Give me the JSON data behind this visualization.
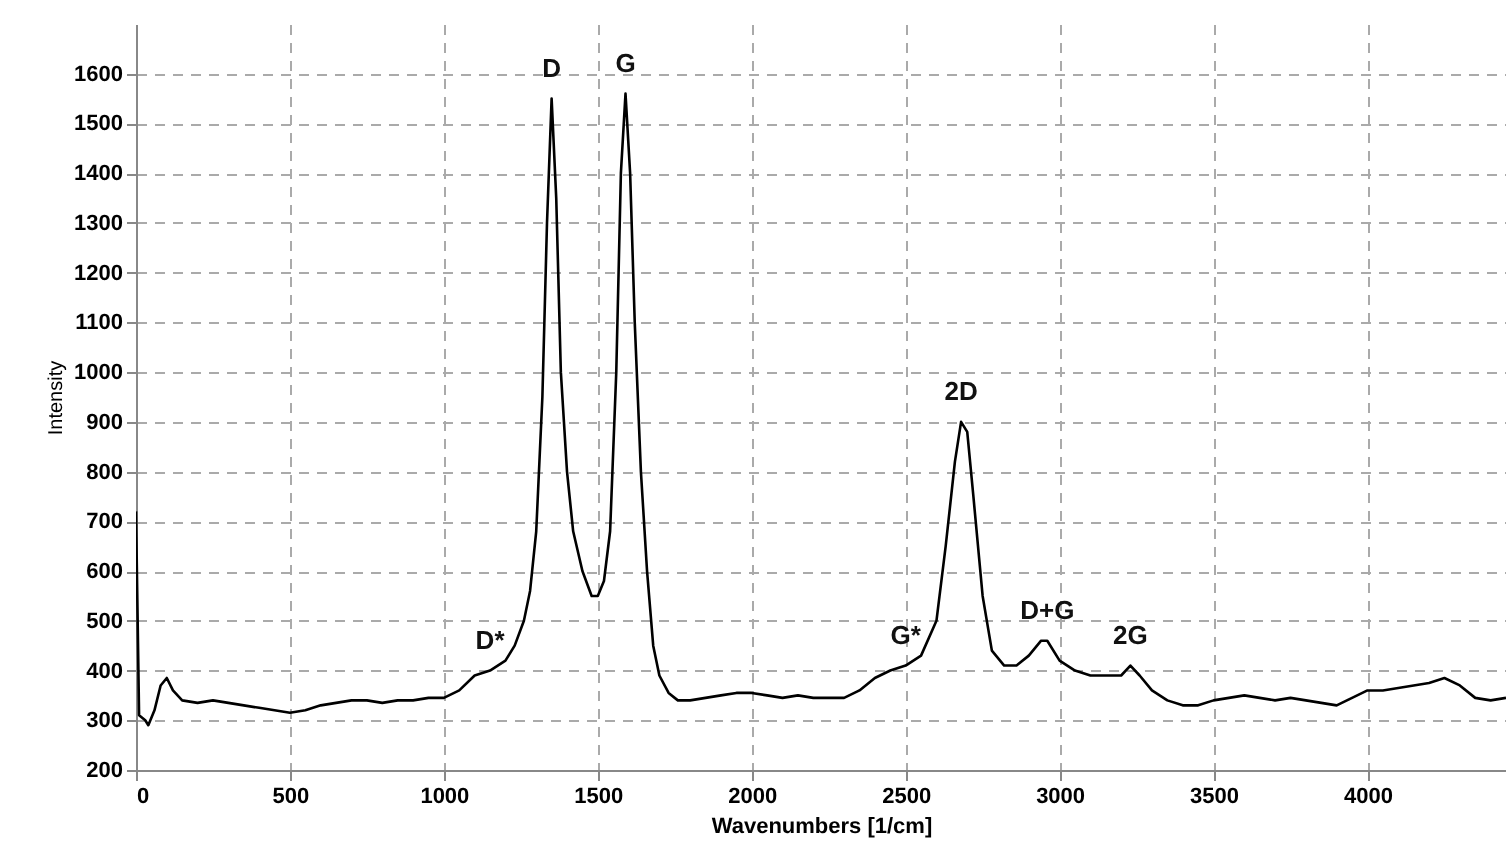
{
  "chart_data": {
    "type": "line",
    "xlabel": "Wavenumbers [1/cm]",
    "ylabel": "Intensity",
    "xlim": [
      0,
      4450
    ],
    "ylim": [
      200,
      1700
    ],
    "xticks": [
      0,
      500,
      1000,
      1500,
      2000,
      2500,
      3000,
      3500,
      4000
    ],
    "yticks": [
      200,
      300,
      400,
      500,
      600,
      700,
      800,
      900,
      1000,
      1100,
      1200,
      1300,
      1400,
      1500,
      1600
    ],
    "grid": true,
    "marker": "none",
    "line_style": "solid",
    "x": [
      0,
      10,
      30,
      40,
      60,
      80,
      100,
      120,
      150,
      200,
      250,
      300,
      350,
      400,
      450,
      500,
      550,
      600,
      650,
      700,
      750,
      800,
      850,
      900,
      950,
      1000,
      1050,
      1100,
      1150,
      1200,
      1230,
      1260,
      1280,
      1300,
      1320,
      1335,
      1350,
      1365,
      1380,
      1400,
      1420,
      1450,
      1480,
      1500,
      1520,
      1540,
      1560,
      1575,
      1590,
      1605,
      1620,
      1640,
      1660,
      1680,
      1700,
      1730,
      1760,
      1800,
      1850,
      1900,
      1950,
      2000,
      2050,
      2100,
      2150,
      2200,
      2250,
      2300,
      2350,
      2400,
      2450,
      2500,
      2550,
      2600,
      2630,
      2660,
      2680,
      2700,
      2720,
      2750,
      2780,
      2820,
      2860,
      2900,
      2940,
      2960,
      3000,
      3050,
      3100,
      3150,
      3200,
      3230,
      3260,
      3300,
      3350,
      3400,
      3450,
      3500,
      3550,
      3600,
      3650,
      3700,
      3750,
      3800,
      3850,
      3900,
      3950,
      4000,
      4050,
      4100,
      4150,
      4200,
      4250,
      4300,
      4350,
      4400,
      4450
    ],
    "series": [
      {
        "color": "#000000",
        "values": [
          720,
          310,
          300,
          290,
          320,
          370,
          385,
          360,
          340,
          335,
          340,
          335,
          330,
          325,
          320,
          315,
          320,
          330,
          335,
          340,
          340,
          335,
          340,
          340,
          345,
          345,
          360,
          390,
          400,
          420,
          450,
          500,
          560,
          680,
          950,
          1300,
          1550,
          1350,
          1000,
          800,
          680,
          600,
          550,
          550,
          580,
          680,
          1000,
          1400,
          1560,
          1400,
          1100,
          800,
          600,
          450,
          390,
          355,
          340,
          340,
          345,
          350,
          355,
          355,
          350,
          345,
          350,
          345,
          345,
          345,
          360,
          385,
          400,
          410,
          430,
          500,
          650,
          820,
          900,
          880,
          750,
          550,
          440,
          410,
          410,
          430,
          460,
          460,
          420,
          400,
          390,
          390,
          390,
          410,
          390,
          360,
          340,
          330,
          330,
          340,
          345,
          350,
          345,
          340,
          345,
          340,
          335,
          330,
          345,
          360,
          360,
          365,
          370,
          375,
          385,
          370,
          345,
          340,
          345
        ]
      }
    ],
    "annotations": [
      {
        "text": "D",
        "x": 1350,
        "y": 1550
      },
      {
        "text": "G",
        "x": 1590,
        "y": 1560
      },
      {
        "text": "D*",
        "x": 1150,
        "y": 400
      },
      {
        "text": "G*",
        "x": 2500,
        "y": 410
      },
      {
        "text": "2D",
        "x": 2680,
        "y": 900
      },
      {
        "text": "D+G",
        "x": 2960,
        "y": 460
      },
      {
        "text": "2G",
        "x": 3230,
        "y": 410
      }
    ]
  }
}
